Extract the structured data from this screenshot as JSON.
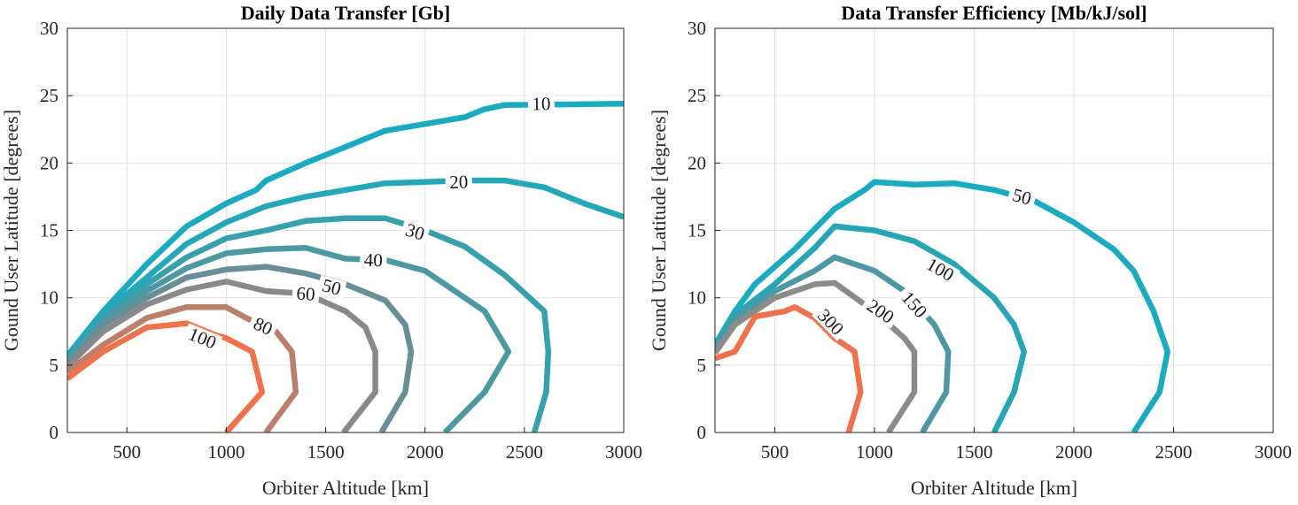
{
  "chart_data": [
    {
      "type": "contour",
      "title": "Daily Data Transfer [Gb]",
      "xlabel": "Orbiter Altitude [km]",
      "ylabel": "Gound User Latitude [degrees]",
      "xlim": [
        200,
        3000
      ],
      "ylim": [
        0,
        30
      ],
      "xticks": [
        500,
        1000,
        1500,
        2000,
        2500,
        3000
      ],
      "yticks": [
        0,
        5,
        10,
        15,
        20,
        25,
        30
      ],
      "grid": true,
      "color_low": "#1aabc0",
      "color_high": "#f0724c",
      "levels": [
        {
          "level": 10,
          "label": "10",
          "color": "#1aabc0",
          "points": [
            [
              200,
              5.7
            ],
            [
              380,
              9
            ],
            [
              600,
              12.5
            ],
            [
              800,
              15.3
            ],
            [
              1000,
              17
            ],
            [
              1150,
              18
            ],
            [
              1200,
              18.7
            ],
            [
              1400,
              20
            ],
            [
              1600,
              21.2
            ],
            [
              1800,
              22.4
            ],
            [
              2000,
              22.9
            ],
            [
              2200,
              23.4
            ],
            [
              2300,
              24
            ],
            [
              2400,
              24.3
            ],
            [
              3000,
              24.4
            ]
          ],
          "label_at": [
            2585,
            24.4
          ]
        },
        {
          "level": 20,
          "label": "20",
          "color": "#24a8b8",
          "points": [
            [
              200,
              5.5
            ],
            [
              380,
              8.8
            ],
            [
              600,
              11.5
            ],
            [
              800,
              14
            ],
            [
              1000,
              15.6
            ],
            [
              1200,
              16.8
            ],
            [
              1400,
              17.5
            ],
            [
              1600,
              18
            ],
            [
              1800,
              18.5
            ],
            [
              2000,
              18.6
            ],
            [
              2200,
              18.7
            ],
            [
              2400,
              18.7
            ],
            [
              2600,
              18.2
            ],
            [
              2800,
              17
            ],
            [
              3000,
              16
            ]
          ],
          "label_at": [
            2170,
            18.6
          ]
        },
        {
          "level": 30,
          "label": "30",
          "color": "#37a0ac",
          "points": [
            [
              200,
              5.3
            ],
            [
              380,
              8.5
            ],
            [
              600,
              11
            ],
            [
              800,
              13
            ],
            [
              1000,
              14.4
            ],
            [
              1200,
              15
            ],
            [
              1400,
              15.7
            ],
            [
              1600,
              15.9
            ],
            [
              1800,
              15.9
            ],
            [
              2000,
              15
            ],
            [
              2200,
              13.8
            ],
            [
              2400,
              11.7
            ],
            [
              2600,
              9
            ],
            [
              2620,
              6
            ],
            [
              2610,
              3
            ],
            [
              2550,
              0
            ]
          ],
          "label_at": [
            1950,
            14.9
          ]
        },
        {
          "level": 40,
          "label": "40",
          "color": "#4d99a2",
          "points": [
            [
              200,
              5.2
            ],
            [
              380,
              8.3
            ],
            [
              600,
              10.5
            ],
            [
              800,
              12.2
            ],
            [
              1000,
              13.3
            ],
            [
              1200,
              13.6
            ],
            [
              1400,
              13.7
            ],
            [
              1600,
              12.9
            ],
            [
              1800,
              12.8
            ],
            [
              2000,
              12
            ],
            [
              2300,
              9
            ],
            [
              2420,
              6
            ],
            [
              2300,
              3
            ],
            [
              2100,
              0
            ]
          ],
          "label_at": [
            1740,
            12.8
          ]
        },
        {
          "level": 50,
          "label": "50",
          "color": "#688f96",
          "points": [
            [
              200,
              5.1
            ],
            [
              380,
              8
            ],
            [
              600,
              10
            ],
            [
              800,
              11.5
            ],
            [
              1000,
              12.1
            ],
            [
              1200,
              12.3
            ],
            [
              1400,
              11.8
            ],
            [
              1600,
              11
            ],
            [
              1800,
              9.8
            ],
            [
              1900,
              8
            ],
            [
              1930,
              6
            ],
            [
              1900,
              3
            ],
            [
              1780,
              0
            ]
          ],
          "label_at": [
            1530,
            10.8
          ]
        },
        {
          "level": 60,
          "label": "60",
          "color": "#88898a",
          "points": [
            [
              200,
              4.9
            ],
            [
              380,
              7.5
            ],
            [
              600,
              9.5
            ],
            [
              800,
              10.6
            ],
            [
              1000,
              11.2
            ],
            [
              1200,
              10.5
            ],
            [
              1400,
              10.3
            ],
            [
              1600,
              9
            ],
            [
              1700,
              7.8
            ],
            [
              1750,
              6
            ],
            [
              1750,
              3
            ],
            [
              1590,
              0
            ]
          ],
          "label_at": [
            1400,
            10.3
          ]
        },
        {
          "level": 80,
          "label": "80",
          "color": "#bb7f6b",
          "points": [
            [
              200,
              4.5
            ],
            [
              380,
              6.5
            ],
            [
              600,
              8.5
            ],
            [
              800,
              9.3
            ],
            [
              1000,
              9.3
            ],
            [
              1100,
              8.5
            ],
            [
              1250,
              7.5
            ],
            [
              1330,
              6
            ],
            [
              1350,
              3
            ],
            [
              1200,
              0
            ]
          ],
          "label_at": [
            1185,
            7.9
          ]
        },
        {
          "level": 100,
          "label": "100",
          "color": "#f0724c",
          "points": [
            [
              200,
              4
            ],
            [
              380,
              6
            ],
            [
              600,
              7.8
            ],
            [
              800,
              8.1
            ],
            [
              950,
              7.2
            ],
            [
              1000,
              7
            ],
            [
              1130,
              6
            ],
            [
              1180,
              3
            ],
            [
              1000,
              0
            ]
          ],
          "label_at": [
            880,
            7
          ]
        }
      ]
    },
    {
      "type": "contour",
      "title": "Data Transfer Efficiency [Mb/kJ/sol]",
      "xlabel": "Orbiter Altitude [km]",
      "ylabel": "Gound User Latitude [degrees]",
      "xlim": [
        200,
        3000
      ],
      "ylim": [
        0,
        30
      ],
      "xticks": [
        500,
        1000,
        1500,
        2000,
        2500,
        3000
      ],
      "yticks": [
        0,
        5,
        10,
        15,
        20,
        25,
        30
      ],
      "grid": true,
      "color_low": "#1aabc0",
      "color_high": "#f0724c",
      "levels": [
        {
          "level": 50,
          "label": "50",
          "color": "#1aabc0",
          "points": [
            [
              200,
              6.5
            ],
            [
              300,
              9
            ],
            [
              400,
              11
            ],
            [
              600,
              13.6
            ],
            [
              800,
              16.6
            ],
            [
              950,
              18
            ],
            [
              1000,
              18.6
            ],
            [
              1200,
              18.4
            ],
            [
              1400,
              18.5
            ],
            [
              1600,
              18
            ],
            [
              1800,
              17.2
            ],
            [
              2000,
              15.6
            ],
            [
              2200,
              13.6
            ],
            [
              2300,
              12
            ],
            [
              2400,
              9
            ],
            [
              2470,
              6
            ],
            [
              2430,
              3
            ],
            [
              2300,
              0
            ]
          ],
          "label_at": [
            1740,
            17.5
          ]
        },
        {
          "level": 100,
          "label": "100",
          "color": "#26a5b4",
          "points": [
            [
              200,
              6.3
            ],
            [
              300,
              8.7
            ],
            [
              500,
              11
            ],
            [
              700,
              13.7
            ],
            [
              800,
              15.3
            ],
            [
              1000,
              15
            ],
            [
              1200,
              14.2
            ],
            [
              1400,
              12.5
            ],
            [
              1600,
              10
            ],
            [
              1700,
              8
            ],
            [
              1750,
              6
            ],
            [
              1700,
              3
            ],
            [
              1600,
              0
            ]
          ],
          "label_at": [
            1330,
            12.1
          ]
        },
        {
          "level": 150,
          "label": "150",
          "color": "#4d98a4",
          "points": [
            [
              200,
              6.1
            ],
            [
              300,
              8.5
            ],
            [
              500,
              10.5
            ],
            [
              700,
              12
            ],
            [
              800,
              13
            ],
            [
              1000,
              12
            ],
            [
              1150,
              10.5
            ],
            [
              1300,
              8
            ],
            [
              1370,
              6
            ],
            [
              1360,
              3
            ],
            [
              1240,
              0
            ]
          ],
          "label_at": [
            1200,
            9.5
          ]
        },
        {
          "level": 200,
          "label": "200",
          "color": "#8a8c8a",
          "points": [
            [
              200,
              5.9
            ],
            [
              300,
              8
            ],
            [
              500,
              10
            ],
            [
              700,
              11
            ],
            [
              800,
              11.1
            ],
            [
              950,
              9.5
            ],
            [
              1000,
              9
            ],
            [
              1150,
              7
            ],
            [
              1200,
              6
            ],
            [
              1200,
              3
            ],
            [
              1070,
              0
            ]
          ],
          "label_at": [
            1030,
            9
          ]
        },
        {
          "level": 300,
          "label": "300",
          "color": "#f0724c",
          "points": [
            [
              200,
              5.5
            ],
            [
              300,
              6
            ],
            [
              400,
              8.6
            ],
            [
              550,
              9
            ],
            [
              600,
              9.3
            ],
            [
              700,
              8.5
            ],
            [
              800,
              7
            ],
            [
              900,
              6
            ],
            [
              930,
              3
            ],
            [
              870,
              0
            ]
          ],
          "label_at": [
            780,
            8.2
          ]
        }
      ]
    }
  ]
}
